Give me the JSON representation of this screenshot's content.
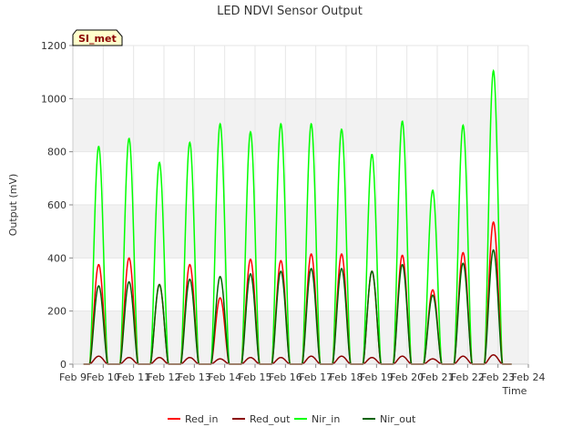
{
  "chart_data": {
    "type": "line",
    "title": "LED NDVI Sensor Output",
    "xlabel": "Time",
    "ylabel": "Output (mV)",
    "site_tag": "SI_met",
    "ylim": [
      0,
      1200
    ],
    "yticks": [
      0,
      200,
      400,
      600,
      800,
      1000,
      1200
    ],
    "xlim": [
      9,
      24
    ],
    "xticks": [
      {
        "value": 9,
        "label": "Feb 9"
      },
      {
        "value": 10,
        "label": "Feb 10"
      },
      {
        "value": 11,
        "label": "Feb 11"
      },
      {
        "value": 12,
        "label": "Feb 12"
      },
      {
        "value": 13,
        "label": "Feb 13"
      },
      {
        "value": 14,
        "label": "Feb 14"
      },
      {
        "value": 15,
        "label": "Feb 15"
      },
      {
        "value": 16,
        "label": "Feb 16"
      },
      {
        "value": 17,
        "label": "Feb 17"
      },
      {
        "value": 18,
        "label": "Feb 18"
      },
      {
        "value": 19,
        "label": "Feb 19"
      },
      {
        "value": 20,
        "label": "Feb 20"
      },
      {
        "value": 21,
        "label": "Feb 21"
      },
      {
        "value": 22,
        "label": "Feb 22"
      },
      {
        "value": 23,
        "label": "Feb 23"
      },
      {
        "value": 24,
        "label": "Feb 24"
      }
    ],
    "data_start": 9.35,
    "data_end": 23.45,
    "peak_days": [
      9.85,
      10.85,
      11.85,
      12.85,
      13.85,
      14.85,
      15.85,
      16.85,
      17.85,
      18.85,
      19.85,
      20.85,
      21.85,
      22.85
    ],
    "series": [
      {
        "name": "Red_in",
        "color": "#ff0000",
        "peaks": [
          375,
          400,
          300,
          375,
          250,
          395,
          390,
          415,
          415,
          350,
          410,
          280,
          420,
          535
        ]
      },
      {
        "name": "Red_out",
        "color": "#8b0000",
        "peaks": [
          30,
          25,
          25,
          25,
          20,
          25,
          25,
          30,
          30,
          25,
          30,
          20,
          30,
          35
        ]
      },
      {
        "name": "Nir_in",
        "color": "#00ff00",
        "peaks": [
          820,
          850,
          760,
          835,
          905,
          875,
          905,
          905,
          885,
          790,
          915,
          655,
          900,
          1105
        ]
      },
      {
        "name": "Nir_out",
        "color": "#006400",
        "peaks": [
          295,
          310,
          300,
          320,
          330,
          340,
          350,
          360,
          360,
          350,
          375,
          260,
          380,
          430
        ]
      }
    ]
  }
}
